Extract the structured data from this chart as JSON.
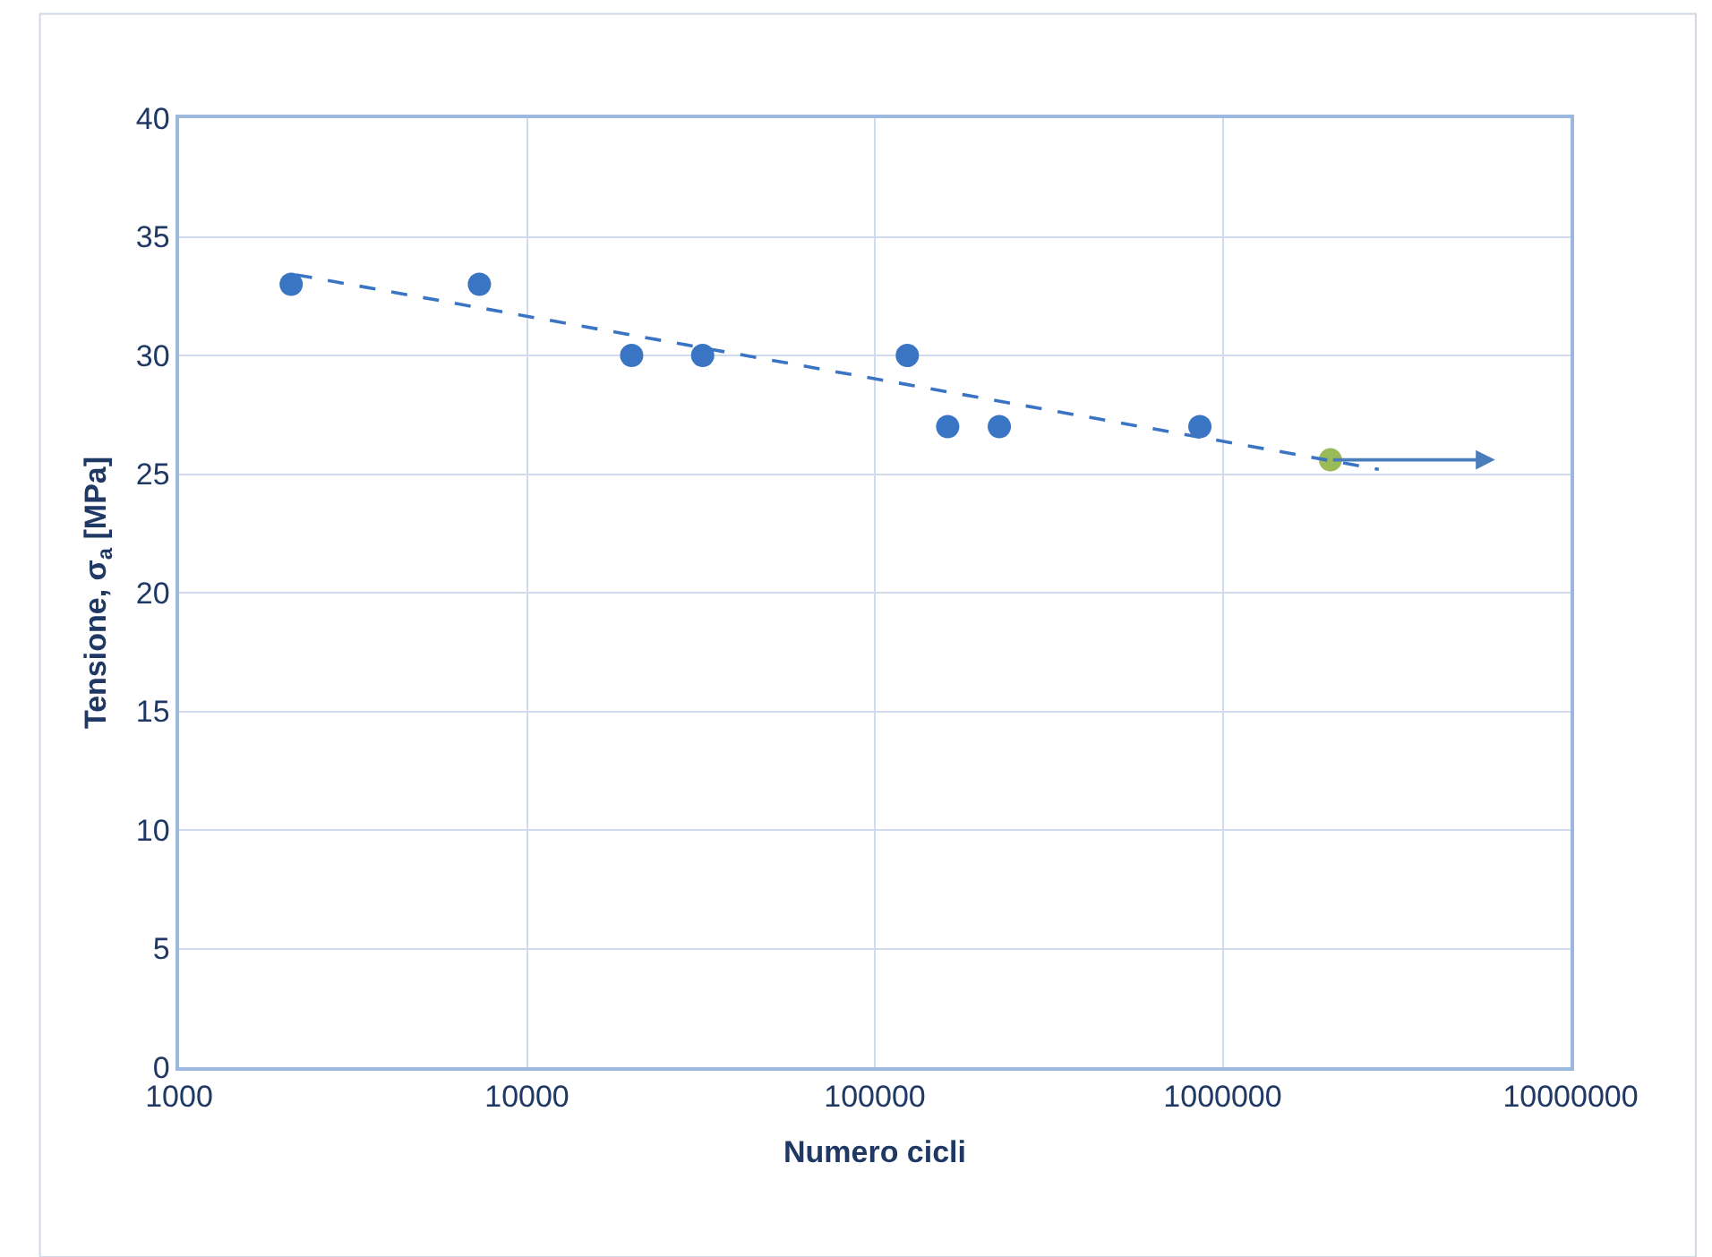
{
  "chart_data": {
    "type": "scatter",
    "xlabel": "Numero cicli",
    "ylabel": "Tensione, σ$_{a}$ [MPa]",
    "log": "x",
    "grid": true,
    "marker": "circle",
    "xlim": [
      1000,
      10000000
    ],
    "xticks": [
      1000,
      10000,
      100000,
      1000000,
      10000000
    ],
    "ylim": [
      0,
      40
    ],
    "yticks": [
      0,
      5,
      10,
      15,
      20,
      25,
      30,
      35,
      40
    ],
    "series": [
      {
        "color": "#3a75c4",
        "x": [
          2100,
          7300,
          20000,
          32000,
          124000,
          162000,
          228000,
          860000
        ],
        "values": [
          33,
          33,
          30,
          30,
          30,
          27,
          27,
          27
        ]
      },
      {
        "color": "#9bbb59",
        "x": [
          2040000
        ],
        "values": [
          25.6
        ]
      },
      {
        "type": "line",
        "color": "#3a75c4",
        "line_style": "dashed",
        "marker": "none",
        "x": [
          2170,
          2810000
        ],
        "values": [
          33.4,
          25.2
        ]
      }
    ]
  }
}
